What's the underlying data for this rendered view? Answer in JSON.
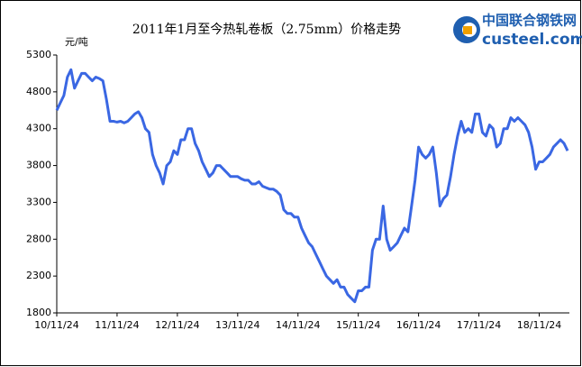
{
  "chart_data": {
    "type": "line",
    "title": "2011年1月至今热轧卷板（2.75mm）价格走势",
    "y_label": "元/吨",
    "categories": [
      "10/11/24",
      null,
      null,
      null,
      null,
      null,
      null,
      null,
      null,
      null,
      null,
      null,
      null,
      null,
      null,
      null,
      null,
      "11/11/24",
      null,
      null,
      null,
      null,
      null,
      null,
      null,
      null,
      null,
      null,
      null,
      null,
      null,
      null,
      null,
      null,
      "12/11/24",
      null,
      null,
      null,
      null,
      null,
      null,
      null,
      null,
      null,
      null,
      null,
      null,
      null,
      null,
      null,
      null,
      "13/11/24",
      null,
      null,
      null,
      null,
      null,
      null,
      null,
      null,
      null,
      null,
      null,
      null,
      null,
      null,
      null,
      null,
      "14/11/24",
      null,
      null,
      null,
      null,
      null,
      null,
      null,
      null,
      null,
      null,
      null,
      null,
      null,
      null,
      null,
      null,
      "15/11/24",
      null,
      null,
      null,
      null,
      null,
      null,
      null,
      null,
      null,
      null,
      null,
      null,
      null,
      null,
      null,
      null,
      "16/11/24",
      null,
      null,
      null,
      null,
      null,
      null,
      null,
      null,
      null,
      null,
      null,
      null,
      null,
      null,
      null,
      null,
      "17/11/24",
      null,
      null,
      null,
      null,
      null,
      null,
      null,
      null,
      null,
      null,
      null,
      null,
      null,
      null,
      null,
      null,
      "18/11/24",
      null,
      null,
      null,
      null,
      null,
      null,
      null,
      null
    ],
    "series": [
      {
        "name": "热轧卷板",
        "color": "#3a67e3",
        "values": [
          4550,
          4650,
          4750,
          5000,
          5100,
          4850,
          4950,
          5050,
          5050,
          5000,
          4950,
          5000,
          4980,
          4950,
          4700,
          4400,
          4400,
          4390,
          4400,
          4380,
          4400,
          4450,
          4500,
          4530,
          4450,
          4300,
          4250,
          3950,
          3800,
          3700,
          3550,
          3800,
          3850,
          4000,
          3950,
          4150,
          4150,
          4300,
          4300,
          4100,
          4000,
          3850,
          3750,
          3650,
          3700,
          3800,
          3800,
          3750,
          3700,
          3650,
          3650,
          3650,
          3620,
          3600,
          3600,
          3550,
          3550,
          3580,
          3520,
          3500,
          3480,
          3480,
          3450,
          3400,
          3200,
          3150,
          3150,
          3100,
          3100,
          2950,
          2850,
          2750,
          2700,
          2600,
          2500,
          2400,
          2300,
          2250,
          2200,
          2250,
          2150,
          2150,
          2050,
          2000,
          1950,
          2100,
          2100,
          2150,
          2150,
          2650,
          2800,
          2800,
          3250,
          2800,
          2650,
          2700,
          2750,
          2850,
          2950,
          2900,
          3250,
          3600,
          4050,
          3950,
          3900,
          3950,
          4050,
          3700,
          3250,
          3350,
          3400,
          3650,
          3950,
          4200,
          4400,
          4250,
          4300,
          4250,
          4500,
          4500,
          4250,
          4200,
          4350,
          4300,
          4050,
          4100,
          4300,
          4300,
          4450,
          4400,
          4450,
          4400,
          4350,
          4250,
          4050,
          3750,
          3850,
          3850,
          3900,
          3950,
          4050,
          4100,
          4150,
          4100,
          4000
        ]
      }
    ],
    "ylim": [
      1800,
      5300
    ],
    "yticks": [
      1800,
      2300,
      2800,
      3300,
      3800,
      4300,
      4800,
      5300
    ],
    "grid": false
  },
  "logo": {
    "name": "中国联合钢铁网",
    "site": "custeel.com"
  }
}
